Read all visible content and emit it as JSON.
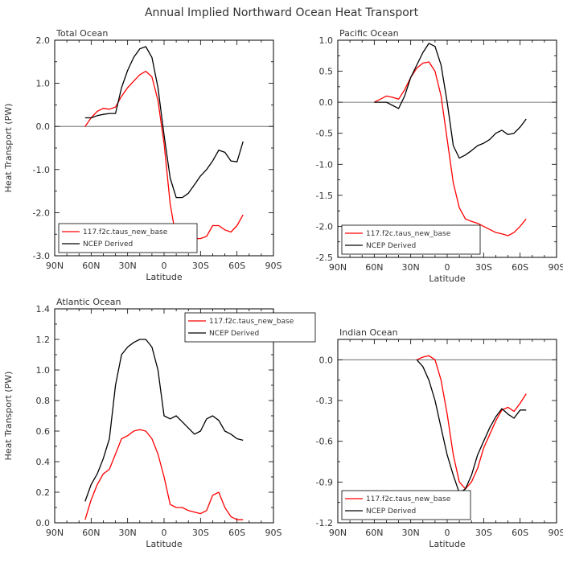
{
  "figure": {
    "title": "Annual Implied Northward Ocean Heat Transport"
  },
  "chart_data": [
    {
      "type": "line",
      "title": "Total Ocean",
      "xlabel": "Latitude",
      "ylabel": "Heat Transport (PW)",
      "xlim": [
        90,
        -90
      ],
      "ylim": [
        -3.0,
        2.0
      ],
      "xticks": [
        90,
        60,
        30,
        0,
        -30,
        -60,
        -90
      ],
      "xtick_labels": [
        "90N",
        "60N",
        "30N",
        "0",
        "30S",
        "60S",
        "90S"
      ],
      "yticks": [
        -3.0,
        -2.0,
        -1.0,
        0.0,
        1.0,
        2.0
      ],
      "ytick_labels": [
        "-3.0",
        "-2.0",
        "-1.0",
        "0.0",
        "1.0",
        "2.0"
      ],
      "zero_line": true,
      "legend_position": "bottom-left",
      "series": [
        {
          "name": "117.f2c.taus_new_base",
          "color": "#ff0000",
          "x": [
            65,
            60,
            55,
            50,
            45,
            40,
            35,
            30,
            25,
            20,
            15,
            10,
            5,
            0,
            -5,
            -10,
            -15,
            -20,
            -25,
            -30,
            -35,
            -40,
            -45,
            -50,
            -55,
            -60,
            -65
          ],
          "y": [
            0.0,
            0.2,
            0.35,
            0.42,
            0.4,
            0.45,
            0.7,
            0.9,
            1.05,
            1.2,
            1.28,
            1.15,
            0.6,
            -0.4,
            -1.8,
            -2.6,
            -2.7,
            -2.65,
            -2.6,
            -2.6,
            -2.55,
            -2.3,
            -2.3,
            -2.4,
            -2.45,
            -2.3,
            -2.05
          ]
        },
        {
          "name": "NCEP Derived",
          "color": "#000000",
          "x": [
            65,
            60,
            55,
            50,
            45,
            40,
            35,
            30,
            25,
            20,
            15,
            10,
            5,
            0,
            -5,
            -10,
            -15,
            -20,
            -25,
            -30,
            -35,
            -40,
            -45,
            -50,
            -55,
            -60,
            -65
          ],
          "y": [
            0.2,
            0.2,
            0.25,
            0.28,
            0.3,
            0.3,
            0.9,
            1.3,
            1.6,
            1.8,
            1.85,
            1.6,
            0.9,
            -0.2,
            -1.2,
            -1.65,
            -1.65,
            -1.55,
            -1.35,
            -1.15,
            -1.0,
            -0.8,
            -0.55,
            -0.6,
            -0.8,
            -0.82,
            -0.35
          ]
        }
      ]
    },
    {
      "type": "line",
      "title": "Pacific Ocean",
      "xlabel": "Latitude",
      "ylabel": "",
      "xlim": [
        90,
        -90
      ],
      "ylim": [
        -2.5,
        1.0
      ],
      "xticks": [
        90,
        60,
        30,
        0,
        -30,
        -60,
        -90
      ],
      "xtick_labels": [
        "90N",
        "60N",
        "30N",
        "0",
        "30S",
        "60S",
        "90S"
      ],
      "yticks": [
        -2.5,
        -2.0,
        -1.5,
        -1.0,
        -0.5,
        0.0,
        0.5,
        1.0
      ],
      "ytick_labels": [
        "-2.5",
        "-2.0",
        "-1.5",
        "-1.0",
        "-0.5",
        "0.0",
        "0.5",
        "1.0"
      ],
      "zero_line": true,
      "legend_position": "bottom-left",
      "series": [
        {
          "name": "117.f2c.taus_new_base",
          "color": "#ff0000",
          "x": [
            60,
            55,
            50,
            45,
            40,
            35,
            30,
            25,
            20,
            15,
            10,
            5,
            0,
            -5,
            -10,
            -15,
            -20,
            -25,
            -30,
            -35,
            -40,
            -45,
            -50,
            -55,
            -60,
            -65
          ],
          "y": [
            0.0,
            0.05,
            0.1,
            0.08,
            0.05,
            0.2,
            0.4,
            0.55,
            0.63,
            0.65,
            0.5,
            0.1,
            -0.6,
            -1.3,
            -1.7,
            -1.88,
            -1.92,
            -1.95,
            -2.0,
            -2.05,
            -2.1,
            -2.12,
            -2.15,
            -2.1,
            -2.0,
            -1.88
          ]
        },
        {
          "name": "NCEP Derived",
          "color": "#000000",
          "x": [
            60,
            55,
            50,
            45,
            40,
            35,
            30,
            25,
            20,
            15,
            10,
            5,
            0,
            -5,
            -10,
            -15,
            -20,
            -25,
            -30,
            -35,
            -40,
            -45,
            -50,
            -55,
            -60,
            -65
          ],
          "y": [
            0.0,
            0.0,
            0.0,
            -0.05,
            -0.1,
            0.1,
            0.4,
            0.6,
            0.8,
            0.95,
            0.9,
            0.6,
            0.0,
            -0.7,
            -0.9,
            -0.85,
            -0.78,
            -0.7,
            -0.66,
            -0.6,
            -0.5,
            -0.45,
            -0.52,
            -0.5,
            -0.4,
            -0.27
          ]
        }
      ]
    },
    {
      "type": "line",
      "title": "Atlantic Ocean",
      "xlabel": "Latitude",
      "ylabel": "Heat Transport (PW)",
      "xlim": [
        90,
        -90
      ],
      "ylim": [
        0.0,
        1.4
      ],
      "xticks": [
        90,
        60,
        30,
        0,
        -30,
        -60,
        -90
      ],
      "xtick_labels": [
        "90N",
        "60N",
        "30N",
        "0",
        "30S",
        "60S",
        "90S"
      ],
      "yticks": [
        0.0,
        0.2,
        0.4,
        0.6,
        0.8,
        1.0,
        1.2,
        1.4
      ],
      "ytick_labels": [
        "0.0",
        "0.2",
        "0.4",
        "0.6",
        "0.8",
        "1.0",
        "1.2",
        "1.4"
      ],
      "zero_line": false,
      "legend_position": "top-right",
      "series": [
        {
          "name": "117.f2c.taus_new_base",
          "color": "#ff0000",
          "x": [
            65,
            60,
            55,
            50,
            45,
            40,
            35,
            30,
            25,
            20,
            15,
            10,
            5,
            0,
            -5,
            -10,
            -15,
            -20,
            -25,
            -30,
            -35,
            -40,
            -45,
            -50,
            -55,
            -60,
            -65
          ],
          "y": [
            0.02,
            0.15,
            0.25,
            0.32,
            0.35,
            0.45,
            0.55,
            0.57,
            0.6,
            0.61,
            0.6,
            0.55,
            0.45,
            0.3,
            0.12,
            0.1,
            0.1,
            0.08,
            0.07,
            0.06,
            0.08,
            0.18,
            0.2,
            0.1,
            0.04,
            0.02,
            0.02
          ]
        },
        {
          "name": "NCEP Derived",
          "color": "#000000",
          "x": [
            65,
            60,
            55,
            50,
            45,
            40,
            35,
            30,
            25,
            20,
            15,
            10,
            5,
            0,
            -5,
            -10,
            -15,
            -20,
            -25,
            -30,
            -35,
            -40,
            -45,
            -50,
            -55,
            -60,
            -65
          ],
          "y": [
            0.14,
            0.25,
            0.32,
            0.42,
            0.55,
            0.9,
            1.1,
            1.15,
            1.18,
            1.2,
            1.2,
            1.15,
            1.0,
            0.7,
            0.68,
            0.7,
            0.66,
            0.62,
            0.58,
            0.6,
            0.68,
            0.7,
            0.67,
            0.6,
            0.58,
            0.55,
            0.54
          ]
        }
      ]
    },
    {
      "type": "line",
      "title": "Indian Ocean",
      "xlabel": "Latitude",
      "ylabel": "",
      "xlim": [
        90,
        -90
      ],
      "ylim": [
        -1.2,
        0.15
      ],
      "xticks": [
        90,
        60,
        30,
        0,
        -30,
        -60,
        -90
      ],
      "xtick_labels": [
        "90N",
        "60N",
        "30N",
        "0",
        "30S",
        "60S",
        "90S"
      ],
      "yticks": [
        -1.2,
        -0.9,
        -0.6,
        -0.3,
        0.0
      ],
      "ytick_labels": [
        "-1.2",
        "-0.9",
        "-0.6",
        "-0.3",
        "0.0"
      ],
      "zero_line": true,
      "legend_position": "bottom-left",
      "series": [
        {
          "name": "117.f2c.taus_new_base",
          "color": "#ff0000",
          "x": [
            25,
            20,
            15,
            10,
            5,
            0,
            -5,
            -10,
            -15,
            -20,
            -25,
            -30,
            -35,
            -40,
            -45,
            -50,
            -55,
            -60,
            -65
          ],
          "y": [
            0.0,
            0.02,
            0.03,
            0.0,
            -0.15,
            -0.4,
            -0.7,
            -0.9,
            -0.95,
            -0.9,
            -0.8,
            -0.65,
            -0.55,
            -0.45,
            -0.37,
            -0.35,
            -0.38,
            -0.32,
            -0.25
          ]
        },
        {
          "name": "NCEP Derived",
          "color": "#000000",
          "x": [
            25,
            20,
            15,
            10,
            5,
            0,
            -5,
            -10,
            -15,
            -20,
            -25,
            -30,
            -35,
            -40,
            -45,
            -50,
            -55,
            -60,
            -65
          ],
          "y": [
            0.0,
            -0.05,
            -0.15,
            -0.3,
            -0.5,
            -0.7,
            -0.85,
            -0.98,
            -0.95,
            -0.85,
            -0.7,
            -0.6,
            -0.5,
            -0.42,
            -0.36,
            -0.4,
            -0.43,
            -0.37,
            -0.37
          ]
        }
      ]
    }
  ]
}
